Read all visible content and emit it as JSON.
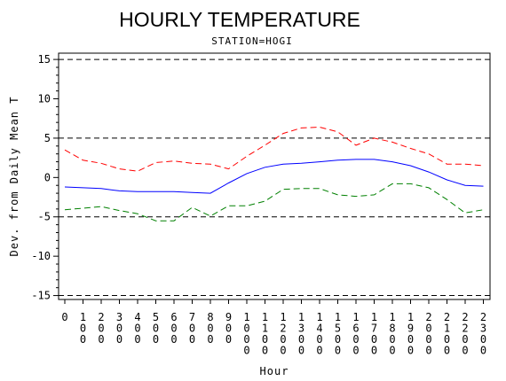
{
  "chart_data": {
    "type": "line",
    "title": "HOURLY TEMPERATURE",
    "subtitle": "STATION=HOGI",
    "xlabel": "Hour",
    "ylabel": "Dev. from Daily Mean T",
    "ylim": [
      -15.5,
      15.8
    ],
    "yticks": [
      -15,
      -10,
      -5,
      0,
      5,
      10,
      15
    ],
    "ytick_labels": [
      "-15",
      "-10",
      "-5",
      "0",
      "5",
      "10",
      "15"
    ],
    "x": [
      0,
      100,
      200,
      300,
      400,
      500,
      600,
      700,
      800,
      900,
      1000,
      1100,
      1200,
      1300,
      1400,
      1500,
      1600,
      1700,
      1800,
      1900,
      2000,
      2100,
      2200,
      2300
    ],
    "xtick_labels": [
      "0",
      "100",
      "200",
      "300",
      "400",
      "500",
      "600",
      "700",
      "800",
      "900",
      "1000",
      "1100",
      "1200",
      "1300",
      "1400",
      "1500",
      "1600",
      "1700",
      "1800",
      "1900",
      "2000",
      "2100",
      "2200",
      "2300"
    ],
    "reference_lines": [
      -15,
      -5,
      5,
      15
    ],
    "grid": false,
    "legend": "none",
    "series": [
      {
        "color": "#ff0000",
        "dash": "dashed",
        "values": [
          3.5,
          2.2,
          1.8,
          1.1,
          0.8,
          1.9,
          2.1,
          1.8,
          1.7,
          1.1,
          2.7,
          4.1,
          5.6,
          6.3,
          6.4,
          5.8,
          4.1,
          5.0,
          4.5,
          3.7,
          3.0,
          1.7,
          1.7,
          1.5
        ]
      },
      {
        "color": "#0000ff",
        "dash": "solid",
        "values": [
          -1.2,
          -1.3,
          -1.4,
          -1.7,
          -1.8,
          -1.8,
          -1.8,
          -1.9,
          -2.0,
          -0.7,
          0.5,
          1.3,
          1.7,
          1.8,
          2.0,
          2.2,
          2.3,
          2.3,
          2.0,
          1.5,
          0.7,
          -0.3,
          -1.0,
          -1.1
        ]
      },
      {
        "color": "#008000",
        "dash": "dashed",
        "values": [
          -4.1,
          -3.9,
          -3.7,
          -4.2,
          -4.6,
          -5.5,
          -5.5,
          -3.8,
          -4.9,
          -3.6,
          -3.6,
          -3.0,
          -1.5,
          -1.4,
          -1.4,
          -2.2,
          -2.4,
          -2.2,
          -0.8,
          -0.8,
          -1.3,
          -2.8,
          -4.5,
          -4.1
        ]
      }
    ]
  }
}
